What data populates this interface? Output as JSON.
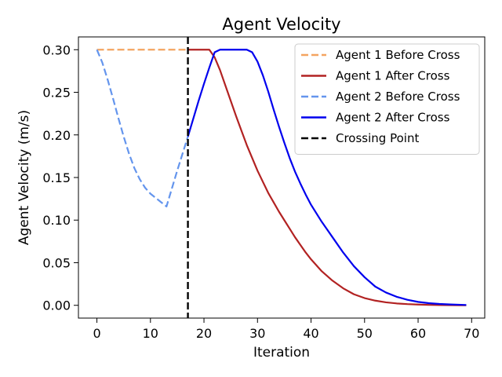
{
  "chart_data": {
    "type": "line",
    "title": "Agent Velocity",
    "xlabel": "Iteration",
    "ylabel": "Agent Velocity (m/s)",
    "xlim": [
      -3.45,
      72.45
    ],
    "ylim": [
      -0.015,
      0.315
    ],
    "xticks": [
      0,
      10,
      20,
      30,
      40,
      50,
      60,
      70
    ],
    "yticks": [
      0.0,
      0.05,
      0.1,
      0.15,
      0.2,
      0.25,
      0.3
    ],
    "xtick_labels": [
      "0",
      "10",
      "20",
      "30",
      "40",
      "50",
      "60",
      "70"
    ],
    "ytick_labels": [
      "0.00",
      "0.05",
      "0.10",
      "0.15",
      "0.20",
      "0.25",
      "0.30"
    ],
    "grid": false,
    "legend_position": "top-right",
    "vlines": [
      {
        "name": "Crossing Point",
        "x": 17,
        "color": "#000000",
        "dash": "dashed"
      }
    ],
    "series": [
      {
        "name": "Agent 1 Before Cross",
        "color": "#f4a460",
        "dash": "dashed",
        "x": [
          0,
          17
        ],
        "y": [
          0.3,
          0.3
        ]
      },
      {
        "name": "Agent 1 After Cross",
        "color": "#b22222",
        "dash": "solid",
        "x": [
          17,
          18,
          19,
          20,
          21,
          22,
          23,
          24,
          25,
          26,
          27,
          28,
          29,
          30,
          31,
          32,
          33,
          34,
          35,
          36,
          37,
          38,
          39,
          40,
          42,
          44,
          46,
          48,
          50,
          52,
          54,
          56,
          58,
          60,
          62,
          64,
          66,
          68,
          69
        ],
        "y": [
          0.3,
          0.3,
          0.3,
          0.3,
          0.3,
          0.291,
          0.276,
          0.258,
          0.24,
          0.222,
          0.205,
          0.188,
          0.173,
          0.158,
          0.145,
          0.132,
          0.121,
          0.11,
          0.1,
          0.09,
          0.08,
          0.071,
          0.062,
          0.054,
          0.04,
          0.029,
          0.02,
          0.013,
          0.0085,
          0.0055,
          0.0035,
          0.0022,
          0.0014,
          0.0009,
          0.0005,
          0.0003,
          0.0002,
          0.0001,
          0.0001
        ]
      },
      {
        "name": "Agent 2 Before Cross",
        "color": "#6495ed",
        "dash": "dashed",
        "x": [
          0,
          1,
          2,
          3,
          4,
          5,
          6,
          7,
          8,
          9,
          10,
          11,
          12,
          13,
          14,
          15,
          16,
          17
        ],
        "y": [
          0.3,
          0.285,
          0.265,
          0.243,
          0.22,
          0.198,
          0.178,
          0.161,
          0.148,
          0.138,
          0.131,
          0.126,
          0.121,
          0.116,
          0.137,
          0.158,
          0.178,
          0.198
        ]
      },
      {
        "name": "Agent 2 After Cross",
        "color": "#0000ee",
        "dash": "solid",
        "x": [
          17,
          18,
          19,
          20,
          21,
          22,
          23,
          24,
          25,
          26,
          27,
          28,
          29,
          30,
          31,
          32,
          33,
          34,
          35,
          36,
          37,
          38,
          39,
          40,
          41,
          42,
          43,
          44,
          46,
          48,
          50,
          52,
          54,
          56,
          58,
          60,
          62,
          64,
          66,
          68,
          69
        ],
        "y": [
          0.198,
          0.219,
          0.24,
          0.26,
          0.279,
          0.297,
          0.3,
          0.3,
          0.3,
          0.3,
          0.3,
          0.3,
          0.297,
          0.286,
          0.27,
          0.251,
          0.23,
          0.21,
          0.191,
          0.173,
          0.157,
          0.143,
          0.13,
          0.118,
          0.108,
          0.098,
          0.089,
          0.08,
          0.062,
          0.046,
          0.033,
          0.022,
          0.015,
          0.01,
          0.0065,
          0.004,
          0.0025,
          0.0016,
          0.001,
          0.0006,
          0.0004
        ]
      }
    ],
    "legend": [
      {
        "label": "Agent 1 Before Cross",
        "color": "#f4a460",
        "dash": "dashed"
      },
      {
        "label": "Agent 1 After Cross",
        "color": "#b22222",
        "dash": "solid"
      },
      {
        "label": "Agent 2 Before Cross",
        "color": "#6495ed",
        "dash": "dashed"
      },
      {
        "label": "Agent 2 After Cross",
        "color": "#0000ee",
        "dash": "solid"
      },
      {
        "label": "Crossing Point",
        "color": "#000000",
        "dash": "dashed"
      }
    ]
  }
}
